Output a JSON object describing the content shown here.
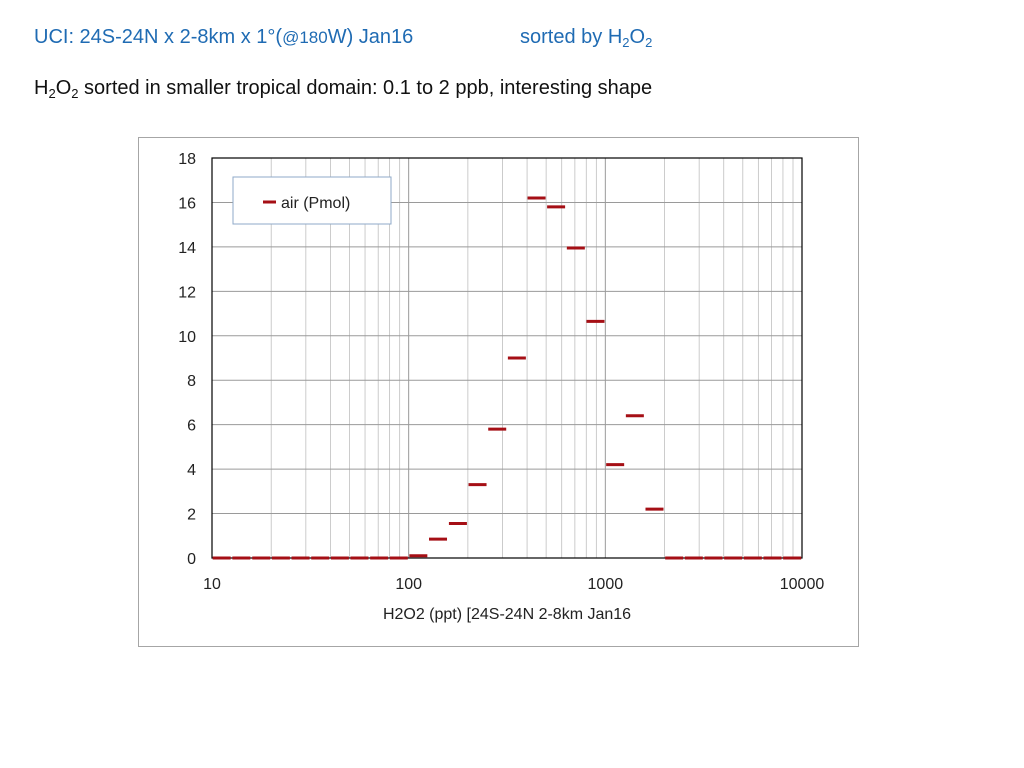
{
  "header": {
    "title_main": "UCI:  24S-24N x 2-8km x 1°(",
    "title_small": "@180",
    "title_tail": "W)  Jan16",
    "title_sorted": "sorted by H",
    "title_sub_2a": "2",
    "title_O": "O",
    "title_sub_2b": "2",
    "subtitle_H": "H",
    "subtitle_sub_2a": "2",
    "subtitle_O": "O",
    "subtitle_sub_2b": "2",
    "subtitle_rest": " sorted in smaller tropical domain:  0.1 to 2 ppb, interesting shape"
  },
  "colors": {
    "title": "#1f6bb3",
    "series": "#a50f15",
    "grid": "#bfbfbf",
    "axis": "#000000"
  },
  "chart_data": {
    "type": "scatter",
    "marker": "dash",
    "xlabel": "H2O2 (ppt)   [24S-24N 2-8km Jan16",
    "ylabel": "",
    "xscale": "log",
    "xlim": [
      10,
      10000
    ],
    "ylim": [
      0,
      18
    ],
    "yticks": [
      0,
      2,
      4,
      6,
      8,
      10,
      12,
      14,
      16,
      18
    ],
    "xticks": [
      10,
      100,
      1000,
      10000
    ],
    "grid": true,
    "legend_position": "top-left",
    "series": [
      {
        "name": "air (Pmol)",
        "points": [
          [
            11.2,
            0
          ],
          [
            14.1,
            0
          ],
          [
            17.8,
            0
          ],
          [
            22.4,
            0
          ],
          [
            28.2,
            0
          ],
          [
            35.5,
            0
          ],
          [
            44.7,
            0
          ],
          [
            56.2,
            0
          ],
          [
            70.8,
            0
          ],
          [
            89.1,
            0
          ],
          [
            112,
            0.1
          ],
          [
            141,
            0.85
          ],
          [
            178,
            1.55
          ],
          [
            224,
            3.3
          ],
          [
            282,
            5.8
          ],
          [
            355,
            9.0
          ],
          [
            447,
            16.2
          ],
          [
            562,
            15.8
          ],
          [
            708,
            13.95
          ],
          [
            891,
            10.65
          ],
          [
            1122,
            4.2
          ],
          [
            1413,
            6.4
          ],
          [
            1778,
            2.2
          ],
          [
            2239,
            0
          ],
          [
            2818,
            0
          ],
          [
            3548,
            0
          ],
          [
            4467,
            0
          ],
          [
            5623,
            0
          ],
          [
            7079,
            0
          ],
          [
            8913,
            0
          ]
        ]
      }
    ]
  }
}
